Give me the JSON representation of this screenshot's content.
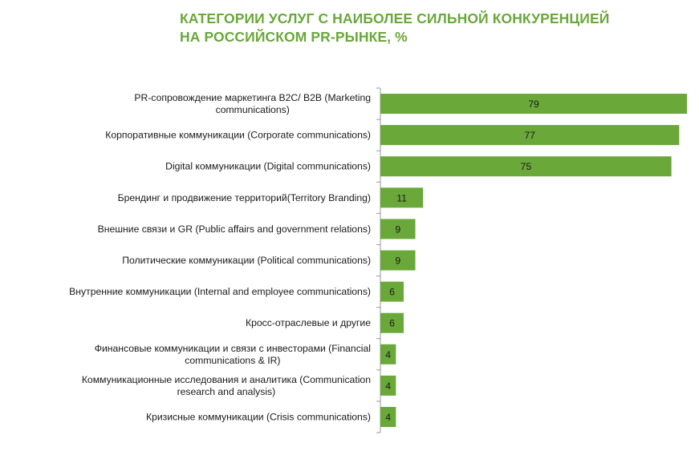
{
  "colors": {
    "title": "#6aa83a",
    "bar": "#6aa83a",
    "axis": "#999999",
    "text": "#1a1a1a"
  },
  "chart_data": {
    "type": "bar",
    "orientation": "horizontal",
    "title": "КАТЕГОРИИ УСЛУГ С НАИБОЛЕЕ СИЛЬНОЙ КОНКУРЕНЦИЕЙ НА РОССИЙСКОМ PR-РЫНКЕ, %",
    "title_lines": [
      "КАТЕГОРИИ УСЛУГ С НАИБОЛЕЕ СИЛЬНОЙ КОНКУРЕНЦИЕЙ",
      "НА РОССИЙСКОМ PR-РЫНКЕ, %"
    ],
    "xlabel": "",
    "ylabel": "",
    "xlim": [
      0,
      79
    ],
    "grid": false,
    "categories": [
      [
        "PR-сопровождение маркетинга B2C/ B2B (Marketing",
        "communications)"
      ],
      [
        "Корпоративные коммуникации (Corporate communications)"
      ],
      [
        "Digital коммуникации (Digital communications)"
      ],
      [
        "Брендинг и продвижение территорий(Territory Branding)"
      ],
      [
        "Внешние связи и GR (Public affairs and government relations)"
      ],
      [
        "Политические коммуникации (Political communications)"
      ],
      [
        "Внутренние коммуникации (Internal and employee communications)"
      ],
      [
        "Кросс-отраслевые и другие"
      ],
      [
        "Финансовые коммуникации и связи с инвесторами (Financial",
        "communications & IR)"
      ],
      [
        "Коммуникационные исследования и аналитика (Communication",
        "research and analysis)"
      ],
      [
        "Кризисные коммуникации (Crisis communications)"
      ]
    ],
    "values": [
      79,
      77,
      75,
      11,
      9,
      9,
      6,
      6,
      4,
      4,
      4
    ],
    "value_labels": [
      "79",
      "77",
      "75",
      "11",
      "9",
      "9",
      "6",
      "6",
      "4",
      "4",
      "4"
    ]
  }
}
